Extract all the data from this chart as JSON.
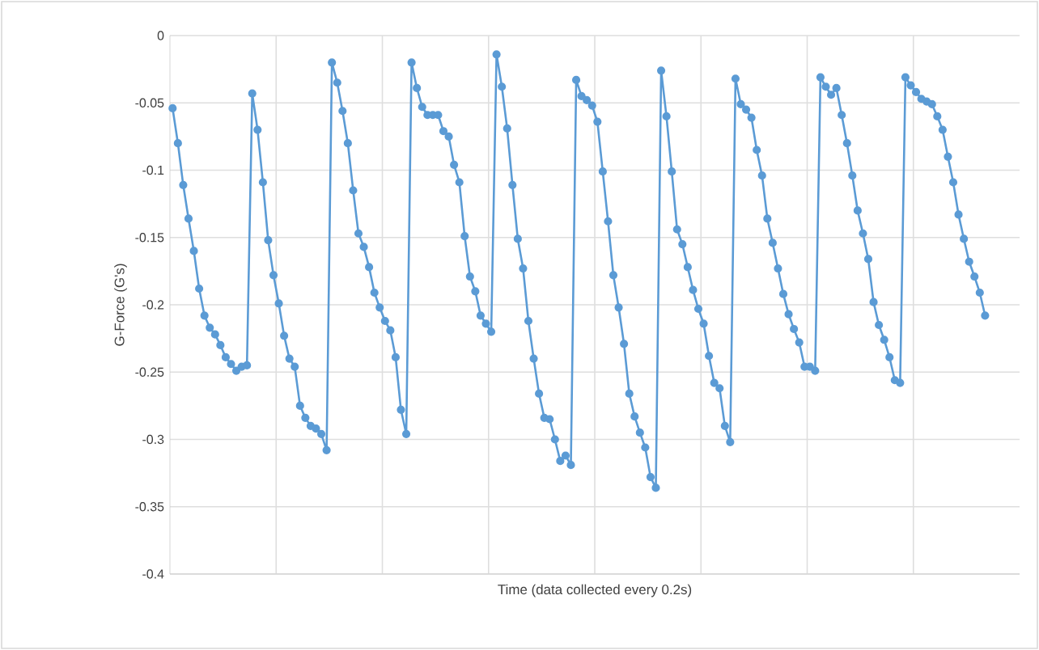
{
  "chart_data": {
    "type": "line",
    "xlabel": "Time (data collected every 0.2s)",
    "ylabel": "G-Force (G's)",
    "categories": [
      null,
      null,
      null,
      null,
      null,
      null,
      null,
      null,
      null,
      null,
      null,
      null,
      null,
      null,
      null,
      null,
      null,
      null,
      null,
      null,
      null,
      null,
      null,
      null,
      null,
      null,
      null,
      null,
      null,
      null,
      null,
      null,
      null,
      null,
      null,
      null,
      null,
      null,
      null,
      null,
      null,
      null,
      null,
      null,
      null,
      null,
      null,
      null,
      null,
      null,
      null,
      null,
      null,
      null,
      null,
      null,
      null,
      null,
      null,
      null,
      null,
      null,
      null,
      null,
      null,
      null,
      null,
      null,
      null,
      null,
      null,
      null,
      null,
      null,
      null,
      null,
      null,
      null,
      null,
      null,
      null,
      null,
      null,
      null,
      null,
      null,
      null,
      null,
      null,
      null,
      null,
      null,
      null,
      null,
      null,
      null,
      null,
      null,
      null,
      null,
      null,
      null,
      null,
      null,
      null,
      null,
      null,
      null,
      null,
      null,
      null,
      null,
      null,
      null,
      null,
      null,
      null,
      null,
      null,
      null,
      null,
      null,
      null,
      null,
      null,
      null,
      null,
      null,
      null,
      null,
      null,
      null,
      null,
      null,
      null,
      null,
      null,
      null,
      null,
      null,
      null,
      null,
      null,
      null,
      null,
      null,
      null,
      null,
      null,
      null,
      null,
      null,
      null,
      null,
      null,
      null,
      null,
      null,
      null,
      null
    ],
    "series": [
      {
        "color": "#5b9bd5",
        "values": [
          -0.054,
          -0.08,
          -0.111,
          -0.136,
          -0.16,
          -0.188,
          -0.208,
          -0.217,
          -0.222,
          -0.23,
          -0.239,
          -0.244,
          -0.249,
          -0.246,
          -0.245,
          -0.043,
          -0.07,
          -0.109,
          -0.152,
          -0.178,
          -0.199,
          -0.223,
          -0.24,
          -0.246,
          -0.275,
          -0.284,
          -0.29,
          -0.292,
          -0.296,
          -0.308,
          -0.02,
          -0.035,
          -0.056,
          -0.08,
          -0.115,
          -0.147,
          -0.157,
          -0.172,
          -0.191,
          -0.202,
          -0.212,
          -0.219,
          -0.239,
          -0.278,
          -0.296,
          -0.02,
          -0.039,
          -0.053,
          -0.059,
          -0.059,
          -0.059,
          -0.071,
          -0.075,
          -0.096,
          -0.109,
          -0.149,
          -0.179,
          -0.19,
          -0.208,
          -0.214,
          -0.22,
          -0.014,
          -0.038,
          -0.069,
          -0.111,
          -0.151,
          -0.173,
          -0.212,
          -0.24,
          -0.266,
          -0.284,
          -0.285,
          -0.3,
          -0.316,
          -0.312,
          -0.319,
          -0.033,
          -0.045,
          -0.048,
          -0.052,
          -0.064,
          -0.101,
          -0.138,
          -0.178,
          -0.202,
          -0.229,
          -0.266,
          -0.283,
          -0.295,
          -0.306,
          -0.328,
          -0.336,
          -0.026,
          -0.06,
          -0.101,
          -0.144,
          -0.155,
          -0.172,
          -0.189,
          -0.203,
          -0.214,
          -0.238,
          -0.258,
          -0.262,
          -0.29,
          -0.302,
          -0.032,
          -0.051,
          -0.055,
          -0.061,
          -0.085,
          -0.104,
          -0.136,
          -0.154,
          -0.173,
          -0.192,
          -0.207,
          -0.218,
          -0.228,
          -0.246,
          -0.246,
          -0.249,
          -0.031,
          -0.038,
          -0.044,
          -0.039,
          -0.059,
          -0.08,
          -0.104,
          -0.13,
          -0.147,
          -0.166,
          -0.198,
          -0.215,
          -0.226,
          -0.239,
          -0.256,
          -0.258,
          -0.031,
          -0.037,
          -0.042,
          -0.047,
          -0.049,
          -0.051,
          -0.06,
          -0.07,
          -0.09,
          -0.109,
          -0.133,
          -0.151,
          -0.168,
          -0.179,
          -0.191,
          -0.208,
          null,
          null,
          null,
          null,
          null,
          null
        ]
      }
    ],
    "ylim": [
      -0.4,
      0
    ],
    "yticks": [
      -0.4,
      -0.35,
      -0.3,
      -0.25,
      -0.2,
      -0.15,
      -0.1,
      -0.05,
      0
    ],
    "grid": true,
    "marker": "circle",
    "line_style": "solid"
  }
}
